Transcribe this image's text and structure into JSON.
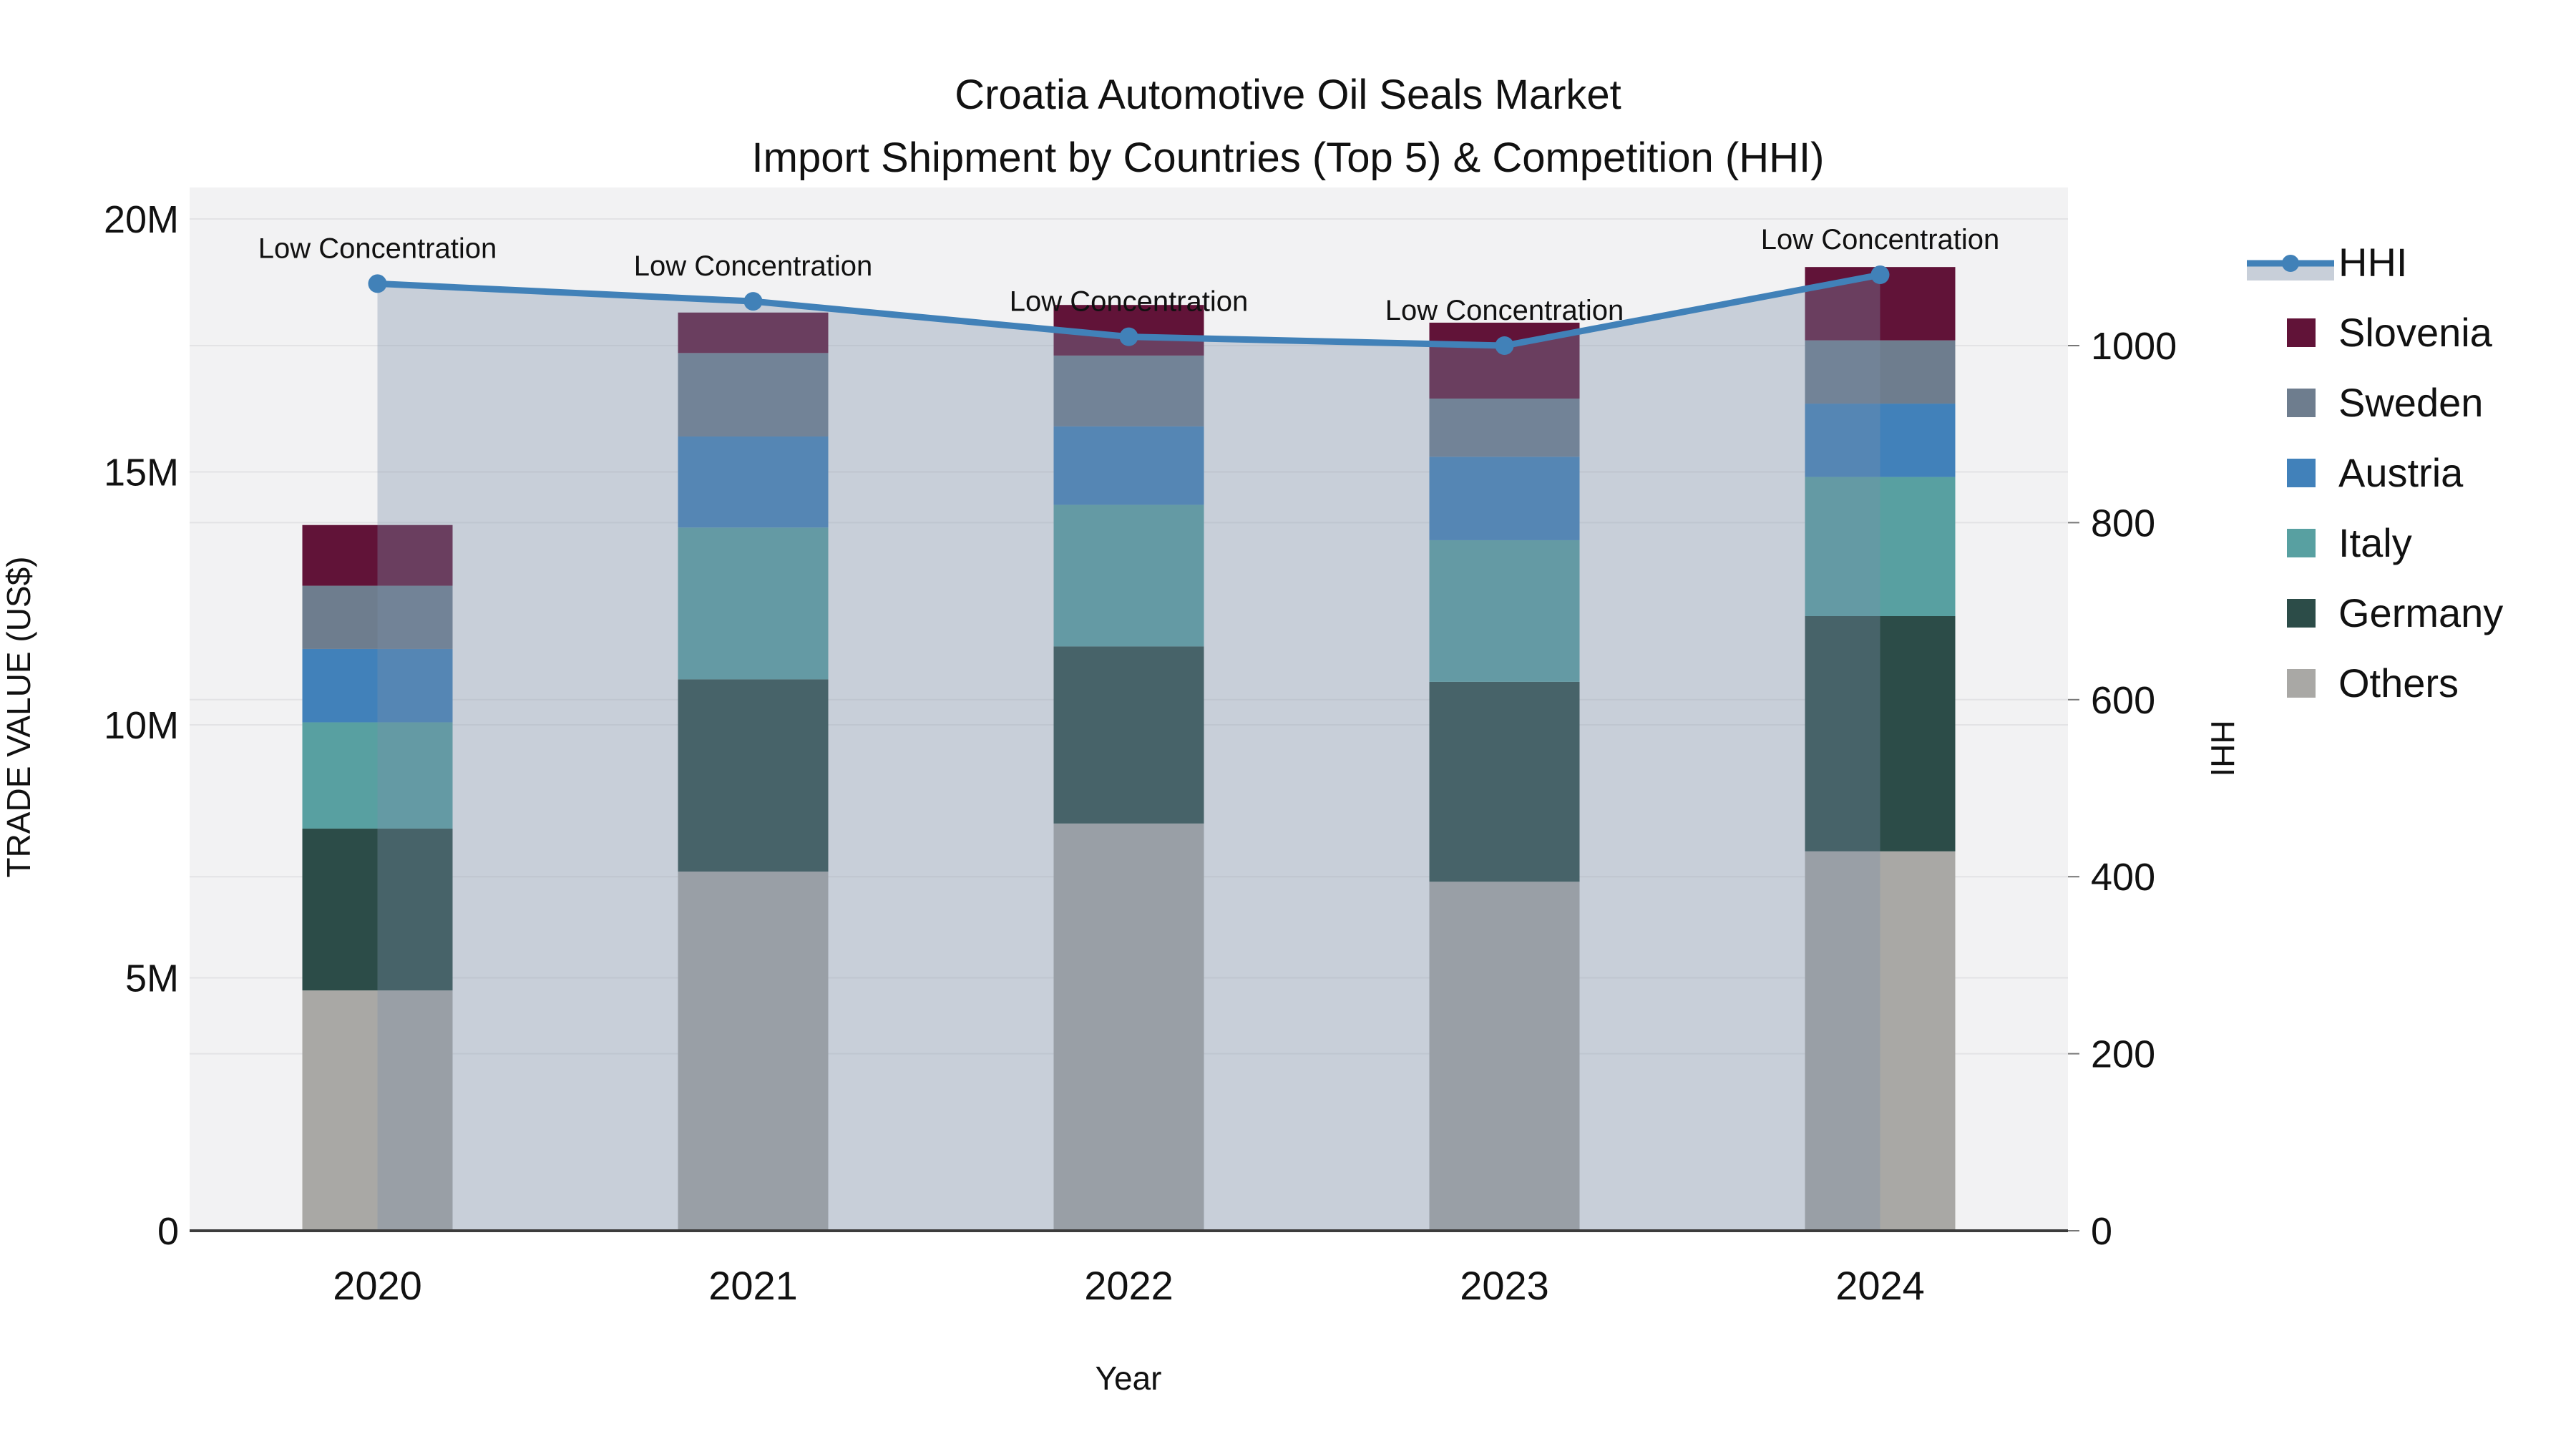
{
  "title": {
    "line1": "Croatia Automotive Oil Seals Market",
    "line2": "Import Shipment by Countries (Top 5) & Competition (HHI)"
  },
  "axes": {
    "left": {
      "label": "TRADE VALUE (US$)",
      "unit": "M",
      "ticks": [
        {
          "v": 0,
          "label": "0"
        },
        {
          "v": 5,
          "label": "5M"
        },
        {
          "v": 10,
          "label": "10M"
        },
        {
          "v": 15,
          "label": "15M"
        },
        {
          "v": 20,
          "label": "20M"
        }
      ]
    },
    "right": {
      "label": "HHI",
      "ticks": [
        {
          "v": 0,
          "label": "0"
        },
        {
          "v": 200,
          "label": "200"
        },
        {
          "v": 400,
          "label": "400"
        },
        {
          "v": 600,
          "label": "600"
        },
        {
          "v": 800,
          "label": "800"
        },
        {
          "v": 1000,
          "label": "1000"
        }
      ]
    },
    "x": {
      "label": "Year",
      "categories": [
        "2020",
        "2021",
        "2022",
        "2023",
        "2024"
      ]
    }
  },
  "legend": {
    "entries": [
      {
        "id": "hhi",
        "label": "HHI",
        "type": "line",
        "color": "#4181b8",
        "fill": "#c8cfd9"
      },
      {
        "id": "slovenia",
        "label": "Slovenia",
        "type": "swatch",
        "color": "#611338"
      },
      {
        "id": "sweden",
        "label": "Sweden",
        "type": "swatch",
        "color": "#6e7d8e"
      },
      {
        "id": "austria",
        "label": "Austria",
        "type": "swatch",
        "color": "#4181ba"
      },
      {
        "id": "italy",
        "label": "Italy",
        "type": "swatch",
        "color": "#58a0a1"
      },
      {
        "id": "germany",
        "label": "Germany",
        "type": "swatch",
        "color": "#2c4c48"
      },
      {
        "id": "others",
        "label": "Others",
        "type": "swatch",
        "color": "#a9a8a5"
      }
    ]
  },
  "colors": {
    "plot_bg": "#f2f2f3",
    "gridline": "#e3e3e5",
    "axis_line": "#3c3c3c",
    "hhi_line": "#4181b8",
    "hhi_area_rgba": "rgba(124,142,169,0.35)",
    "text": "#111111"
  },
  "chart_data": {
    "type": "combo: stacked-bar (left axis, trade value) + area-line (right axis, HHI)",
    "x": [
      "2020",
      "2021",
      "2022",
      "2023",
      "2024"
    ],
    "categories": [
      "2020",
      "2021",
      "2022",
      "2023",
      "2024"
    ],
    "bar_unit": "million US$",
    "series": [
      {
        "name": "Others",
        "stack_order": 1,
        "color": "#a9a8a5",
        "values": [
          4.75,
          7.1,
          8.05,
          6.9,
          7.5
        ]
      },
      {
        "name": "Germany",
        "stack_order": 2,
        "color": "#2c4c48",
        "values": [
          3.2,
          3.8,
          3.5,
          3.95,
          4.65
        ]
      },
      {
        "name": "Italy",
        "stack_order": 3,
        "color": "#58a0a1",
        "values": [
          2.1,
          3.0,
          2.8,
          2.8,
          2.75
        ]
      },
      {
        "name": "Austria",
        "stack_order": 4,
        "color": "#4181ba",
        "values": [
          1.45,
          1.8,
          1.55,
          1.65,
          1.45
        ]
      },
      {
        "name": "Sweden",
        "stack_order": 5,
        "color": "#6e7d8e",
        "values": [
          1.25,
          1.65,
          1.4,
          1.15,
          1.25
        ]
      },
      {
        "name": "Slovenia",
        "stack_order": 6,
        "color": "#611338",
        "values": [
          1.2,
          0.8,
          1.0,
          1.5,
          1.45
        ]
      }
    ],
    "stack_totals": [
      13.95,
      18.15,
      18.3,
      17.95,
      19.05
    ],
    "line_series": {
      "name": "HHI",
      "axis": "right",
      "values": [
        1070,
        1050,
        1010,
        1000,
        1080
      ],
      "point_annotations": [
        "Low Concentration",
        "Low Concentration",
        "Low Concentration",
        "Low Concentration",
        "Low Concentration"
      ]
    },
    "title": "Croatia Automotive Oil Seals Market — Import Shipment by Countries (Top 5) & Competition (HHI)",
    "xlabel": "Year",
    "ylabel": "TRADE VALUE (US$)",
    "y2label": "HHI",
    "ylim": [
      0,
      20.3
    ],
    "y2lim": [
      0,
      1163
    ],
    "grid": true,
    "legend_position": "right"
  }
}
